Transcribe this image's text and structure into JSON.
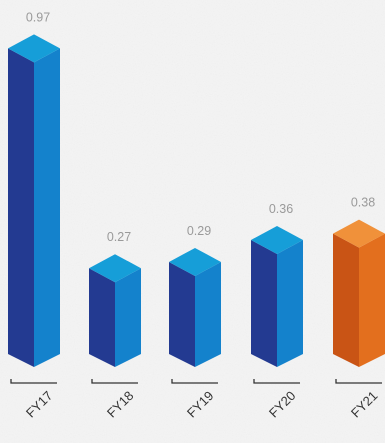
{
  "chart_data": {
    "type": "bar",
    "categories": [
      "FY17",
      "FY18",
      "FY19",
      "FY20",
      "FY21"
    ],
    "values": [
      0.97,
      0.27,
      0.29,
      0.36,
      0.38
    ],
    "value_labels": [
      "0.97",
      "0.27",
      "0.29",
      "0.36",
      "0.38"
    ],
    "title": "",
    "xlabel": "",
    "ylabel": "",
    "ylim": [
      0,
      1
    ],
    "grid": false,
    "legend": "none",
    "style": "3d-bars",
    "bar_colors": {
      "default": {
        "front": "#233a91",
        "side": "#1482cc",
        "top": "#169ed8"
      },
      "highlight": {
        "front": "#c95415",
        "side": "#e36f1e",
        "top": "#f0913a"
      }
    },
    "highlight_categories": [
      "FY21"
    ],
    "colors": {
      "background": "#f4f4f4",
      "data_label": "#9a9a9a",
      "tick_label": "#333333",
      "axis_tick": "#333333"
    }
  }
}
